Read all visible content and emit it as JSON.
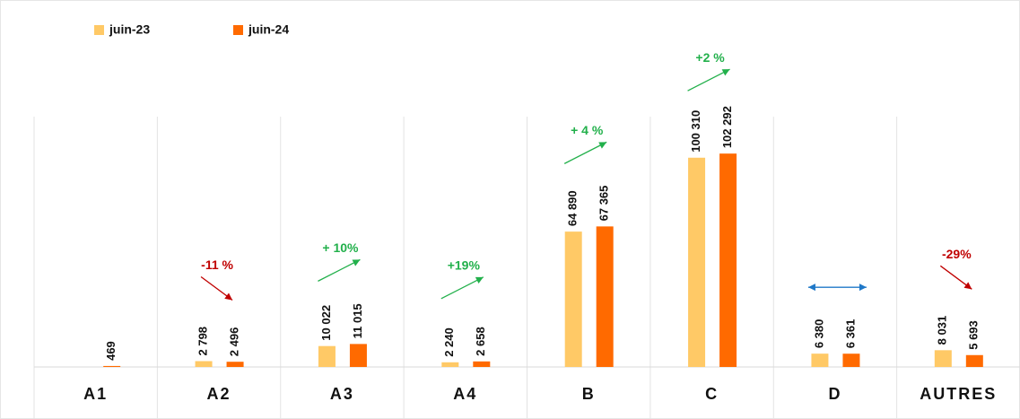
{
  "chart_data": {
    "type": "bar",
    "categories": [
      "A1",
      "A2",
      "A3",
      "A4",
      "B",
      "C",
      "D",
      "AUTRES"
    ],
    "series": [
      {
        "name": "juin-23",
        "color": "#FFC966",
        "values": [
          null,
          2798,
          10022,
          2240,
          64890,
          100310,
          6380,
          8031
        ],
        "value_labels": [
          null,
          "2 798",
          "10 022",
          "2 240",
          "64 890",
          "100 310",
          "6 380",
          "8 031"
        ]
      },
      {
        "name": "juin-24",
        "color": "#FF6A00",
        "values": [
          469,
          2496,
          11015,
          2658,
          67365,
          102292,
          6361,
          5693
        ],
        "value_labels": [
          "469",
          "2 496",
          "11 015",
          "2 658",
          "67 365",
          "102 292",
          "6 361",
          "5 693"
        ]
      }
    ],
    "ylim": [
      0,
      120000
    ],
    "annotations": [
      {
        "category_index": 1,
        "text": "-11 %",
        "direction": "down",
        "color": "#C00000"
      },
      {
        "category_index": 2,
        "text": "+ 10%",
        "direction": "up",
        "color": "#22B04B"
      },
      {
        "category_index": 3,
        "text": "+19%",
        "direction": "up",
        "color": "#22B04B"
      },
      {
        "category_index": 4,
        "text": "+ 4 %",
        "direction": "up",
        "color": "#22B04B"
      },
      {
        "category_index": 5,
        "text": "+2 %",
        "direction": "up",
        "color": "#22B04B"
      },
      {
        "category_index": 6,
        "direction": "both",
        "color": "#1F78C8"
      },
      {
        "category_index": 7,
        "text": "-29%",
        "direction": "down",
        "color": "#C00000"
      }
    ]
  }
}
